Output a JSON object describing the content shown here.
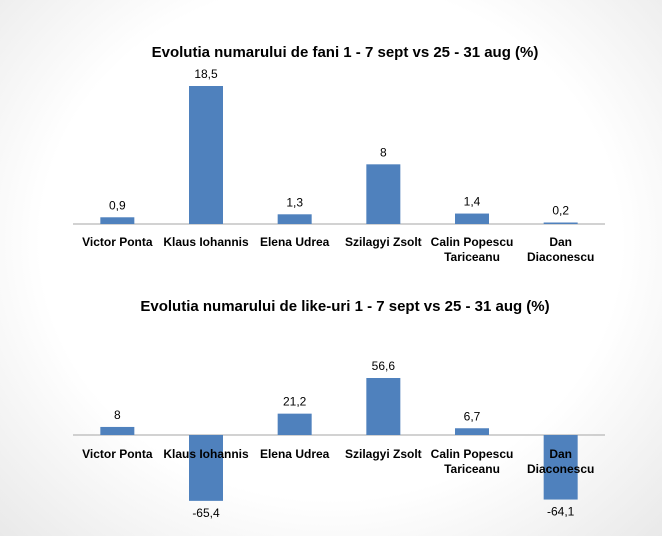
{
  "colors": {
    "bar": "#4f81bd",
    "axis": "#a6a6a6",
    "background": "#ffffff"
  },
  "chart_data": [
    {
      "type": "bar",
      "title": "Evolutia numarului de fani 1 - 7 sept vs  25 - 31 aug (%)",
      "categories": [
        [
          "Victor Ponta"
        ],
        [
          "Klaus Iohannis"
        ],
        [
          "Elena Udrea"
        ],
        [
          "Szilagyi Zsolt"
        ],
        [
          "Calin Popescu",
          "Tariceanu"
        ],
        [
          "Dan",
          "Diaconescu"
        ]
      ],
      "values": [
        0.9,
        18.5,
        1.3,
        8,
        1.4,
        0.2
      ],
      "value_labels": [
        "0,9",
        "18,5",
        "1,3",
        "8",
        "1,4",
        "0,2"
      ],
      "ylim": [
        0,
        20
      ],
      "grid": false,
      "legend": "none"
    },
    {
      "type": "bar",
      "title": "Evolutia numarului de like-uri 1 - 7 sept vs  25 - 31 aug (%)",
      "categories": [
        [
          "Victor Ponta"
        ],
        [
          "Klaus Iohannis"
        ],
        [
          "Elena Udrea"
        ],
        [
          "Szilagyi Zsolt"
        ],
        [
          "Calin Popescu",
          "Tariceanu"
        ],
        [
          "Dan",
          "Diaconescu"
        ]
      ],
      "values": [
        8,
        -65.4,
        21.2,
        56.6,
        6.7,
        -64.1
      ],
      "value_labels": [
        "8",
        "-65,4",
        "21,2",
        "56,6",
        "6,7",
        "-64,1"
      ],
      "ylim": [
        -70,
        60
      ],
      "grid": false,
      "legend": "none"
    }
  ]
}
